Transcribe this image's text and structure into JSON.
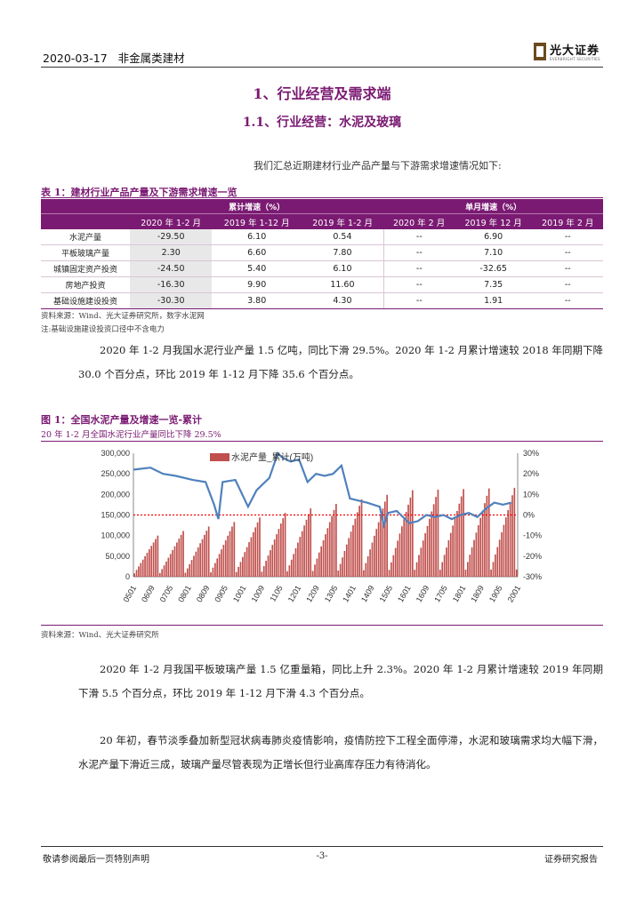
{
  "header": {
    "date": "2020-03-17",
    "category": "非金属类建材",
    "logo_text": "光大证券",
    "logo_sub": "EVERBRIGHT SECURITIES"
  },
  "headings": {
    "h1": "1、行业经营及需求端",
    "h2": "1.1、行业经营：水泥及玻璃"
  },
  "intro": "我们汇总近期建材行业产品产量与下游需求增速情况如下:",
  "table1": {
    "caption": "表 1：建材行业产品产量及下游需求增速一览",
    "group_cumulative": "累计增速（%）",
    "group_monthly": "单月增速（%）",
    "columns": [
      "",
      "2020 年 1-2 月",
      "2019 年 1-12 月",
      "2019 年 1-2 月",
      "2020 年 2 月",
      "2019 年 12 月",
      "2019 年 2 月"
    ],
    "rows": [
      [
        "水泥产量",
        "-29.50",
        "6.10",
        "0.54",
        "--",
        "6.90",
        "--"
      ],
      [
        "平板玻璃产量",
        "2.30",
        "6.60",
        "7.80",
        "--",
        "7.10",
        "--"
      ],
      [
        "城镇固定资产投资",
        "-24.50",
        "5.40",
        "6.10",
        "--",
        "-32.65",
        "--"
      ],
      [
        "房地产投资",
        "-16.30",
        "9.90",
        "11.60",
        "--",
        "7.35",
        "--"
      ],
      [
        "基础设施建设投资",
        "-30.30",
        "3.80",
        "4.30",
        "--",
        "1.91",
        "--"
      ]
    ],
    "source": "资料来源：Wind、光大证券研究所，数字水泥网",
    "note": "注:基础设施建设投资口径中不含电力"
  },
  "para1": "2020 年 1-2 月我国水泥行业产量 1.5 亿吨，同比下滑 29.5%。2020 年 1-2 月累计增速较 2018 年同期下降 30.0 个百分点，环比 2019 年 1-12 月下降 35.6 个百分点。",
  "figure1": {
    "caption": "图 1：全国水泥产量及增速一览-累计",
    "subtitle": "20 年 1-2 月全国水泥行业产量同比下降 29.5%",
    "source": "资料来源：Wind、光大证券研究所"
  },
  "chart_data": {
    "type": "bar",
    "legend": [
      "水泥产量_累计(万吨)"
    ],
    "left_ticks": [
      "300,000",
      "250,000",
      "200,000",
      "150,000",
      "100,000",
      "50,000",
      "0"
    ],
    "right_ticks": [
      "30%",
      "20%",
      "10%",
      "0%",
      "-10%",
      "-20%",
      "-30%"
    ],
    "x_ticks": [
      "0501",
      "0609",
      "0705",
      "0801",
      "0809",
      "0905",
      "1001",
      "1009",
      "1105",
      "1201",
      "1209",
      "1305",
      "1401",
      "1409",
      "1505",
      "1601",
      "1609",
      "1705",
      "1801",
      "1809",
      "1905",
      "2001"
    ],
    "ylim_left": [
      0,
      300000
    ],
    "ylim_right": [
      -30,
      30
    ],
    "colors": {
      "bar": "#c0504d",
      "line": "#4f81bd",
      "zero": "#ff0000"
    }
  },
  "para2": "2020 年 1-2 月我国平板玻璃产量 1.5 亿重量箱，同比上升 2.3%。2020 年 1-2 月累计增速较 2019 年同期下滑 5.5 个百分点，环比 2019 年 1-12 月下滑 4.3 个百分点。",
  "para3": "20 年初，春节淡季叠加新型冠状病毒肺炎疫情影响，疫情防控下工程全面停滞，水泥和玻璃需求均大幅下滑，水泥产量下滑近三成，玻璃产量尽管表现为正增长但行业高库存压力有待消化。",
  "footer": {
    "left": "敬请参阅最后一页特别声明",
    "page": "-3-",
    "right": "证券研究报告"
  }
}
